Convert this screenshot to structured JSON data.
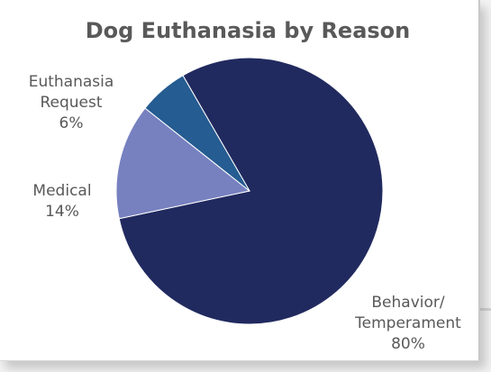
{
  "chart_data": {
    "type": "pie",
    "title": "Dog Euthanasia by Reason",
    "slices": [
      {
        "label_lines": [
          "Behavior/",
          "Temperament"
        ],
        "value": 80,
        "value_label": "80%",
        "color": "#212a5f"
      },
      {
        "label_lines": [
          "Medical"
        ],
        "value": 14,
        "value_label": "14%",
        "color": "#7781c0"
      },
      {
        "label_lines": [
          "Euthanasia",
          "Request"
        ],
        "value": 6,
        "value_label": "6%",
        "color": "#255c91"
      }
    ],
    "start_angle_deg": 330,
    "direction": "clockwise",
    "legend": "none"
  }
}
